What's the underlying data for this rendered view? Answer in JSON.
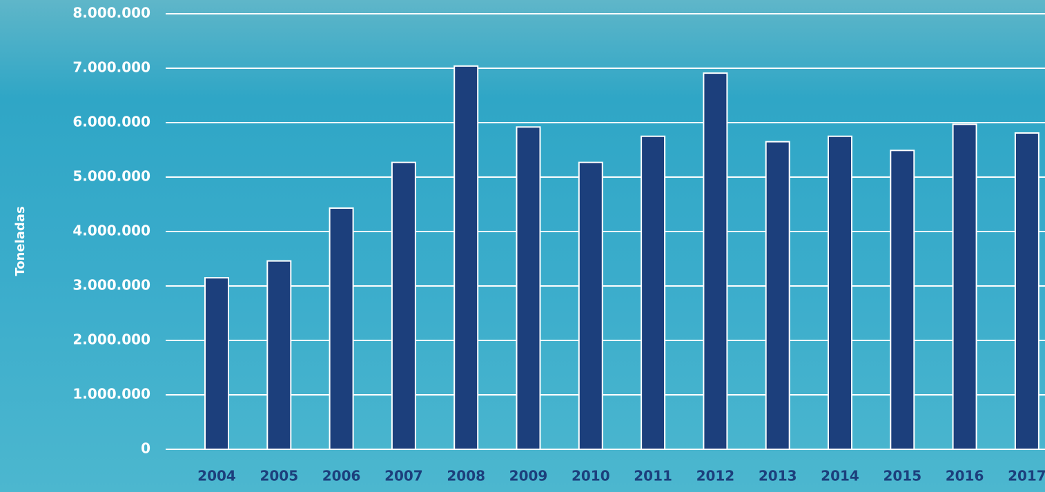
{
  "chart_data": {
    "type": "bar",
    "y_label": "Toneladas",
    "categories": [
      "2004",
      "2005",
      "2006",
      "2007",
      "2008",
      "2009",
      "2010",
      "2011",
      "2012",
      "2013",
      "2014",
      "2015",
      "2016",
      "2017"
    ],
    "values": [
      3150000,
      3460000,
      4430000,
      5270000,
      7040000,
      5920000,
      5270000,
      5750000,
      6910000,
      5650000,
      5750000,
      5490000,
      5970000,
      5810000
    ],
    "color": "#1c3f7c",
    "ylim": [
      0,
      8000000
    ],
    "yticks": [
      0,
      {
        "value": 1000000,
        "label": "1.000.000"
      },
      {
        "value": 2000000,
        "label": "2.000.000"
      },
      {
        "value": 3000000,
        "label": "3.000.000"
      },
      {
        "value": 4000000,
        "label": "4.000.000"
      },
      {
        "value": 5000000,
        "label": "5.000.000"
      },
      {
        "value": 6000000,
        "label": "6.000.000"
      },
      {
        "value": 7000000,
        "label": "7.000.000"
      },
      {
        "value": 8000000,
        "label": "8.000.000"
      }
    ],
    "grid": true
  }
}
